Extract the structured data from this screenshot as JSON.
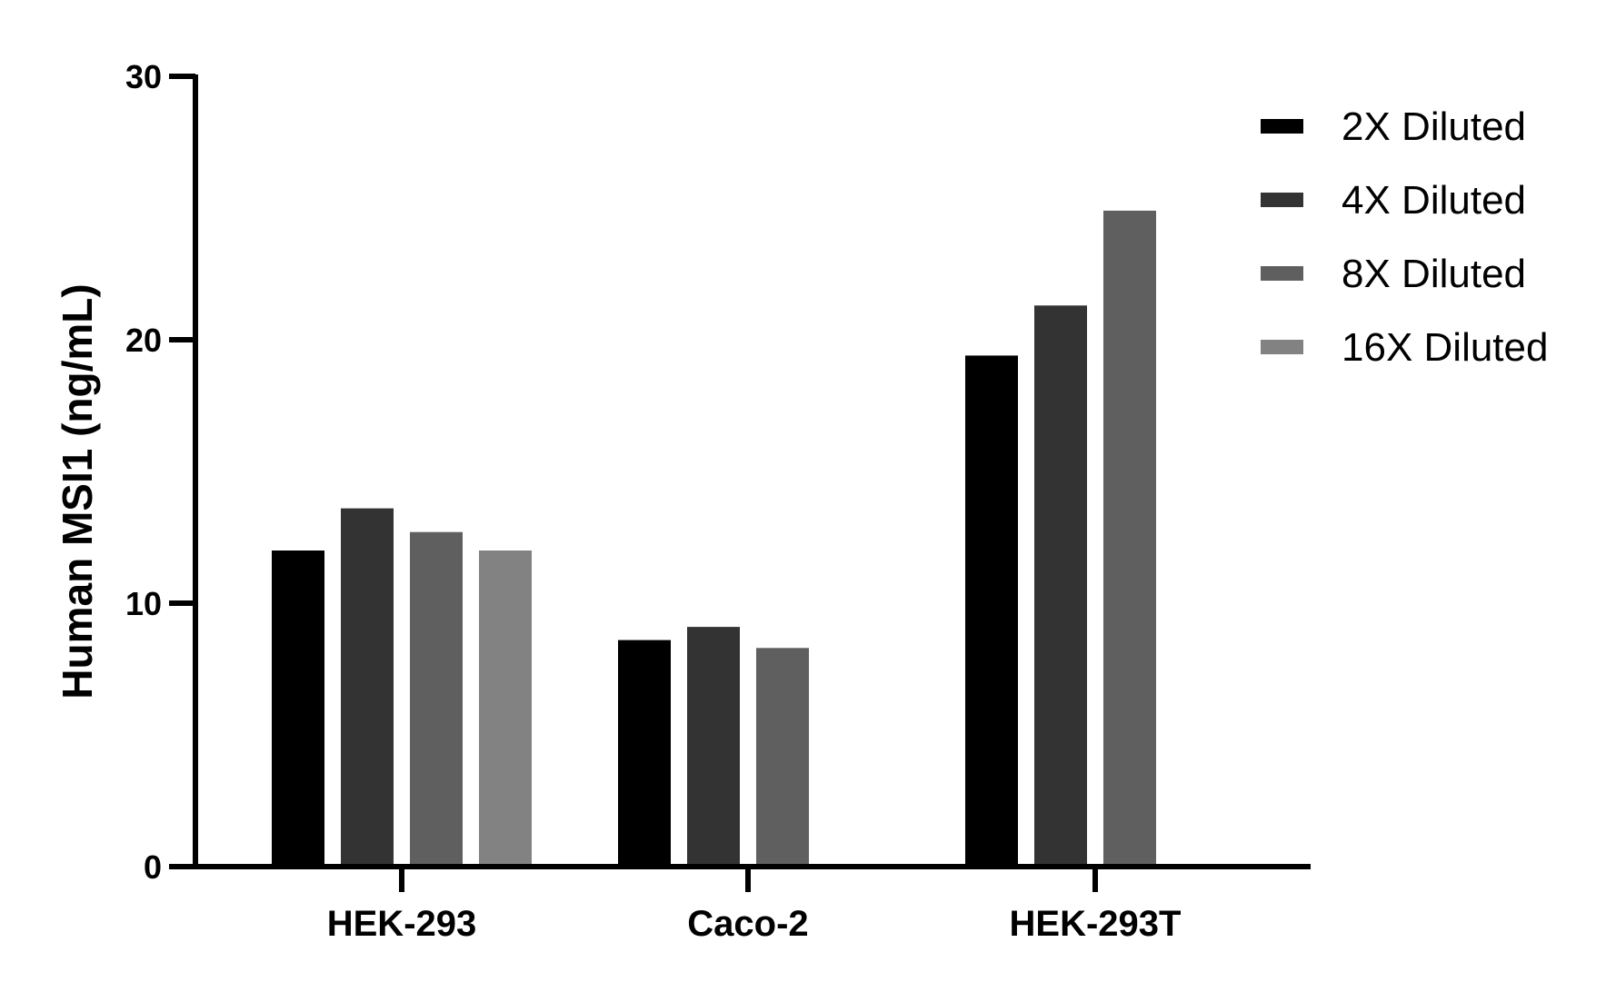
{
  "chart_data": {
    "type": "bar",
    "title": "",
    "xlabel": "",
    "ylabel": "Human MSI1  (ng/mL)",
    "ylim": [
      0,
      30
    ],
    "yticks": [
      0,
      10,
      20,
      30
    ],
    "grid": false,
    "legend_position": "top-right",
    "categories": [
      "HEK-293",
      "Caco-2",
      "HEK-293T"
    ],
    "series": [
      {
        "name": "2X Diluted",
        "color": "#000000",
        "values": [
          12.0,
          8.6,
          19.4
        ]
      },
      {
        "name": "4X Diluted",
        "color": "#333333",
        "values": [
          13.6,
          9.1,
          21.3
        ]
      },
      {
        "name": "8X Diluted",
        "color": "#5f5f5f",
        "values": [
          12.7,
          8.3,
          24.9
        ]
      },
      {
        "name": "16X Diluted",
        "color": "#828282",
        "values": [
          12.0,
          null,
          null
        ]
      }
    ]
  }
}
